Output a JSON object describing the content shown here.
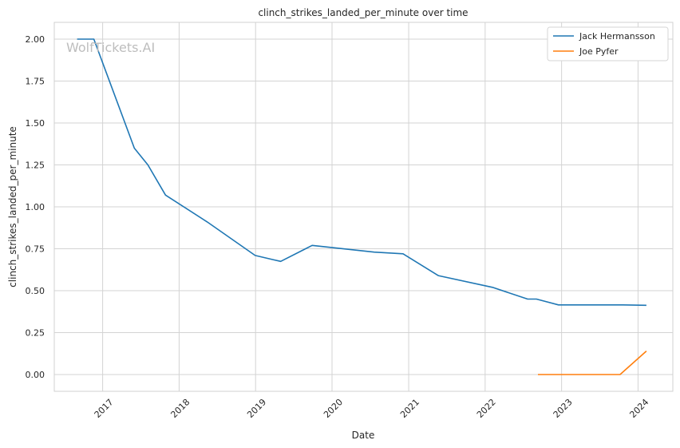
{
  "watermark": "WolfTickets.AI",
  "chart_data": {
    "type": "line",
    "title": "clinch_strikes_landed_per_minute over time",
    "xlabel": "Date",
    "ylabel": "clinch_strikes_landed_per_minute",
    "x_ticks": [
      "2017",
      "2018",
      "2019",
      "2020",
      "2021",
      "2022",
      "2023",
      "2024"
    ],
    "y_ticks": [
      "0.00",
      "0.25",
      "0.50",
      "0.75",
      "1.00",
      "1.25",
      "1.50",
      "1.75",
      "2.00"
    ],
    "xlim": [
      "2016-05-15",
      "2024-06-15"
    ],
    "ylim": [
      -0.1,
      2.1
    ],
    "grid": true,
    "legend_position": "top-right",
    "series": [
      {
        "name": "Jack Hermansson",
        "color": "#1f77b4",
        "points": [
          {
            "x": "2016-09-01",
            "y": 2.0
          },
          {
            "x": "2016-11-20",
            "y": 2.0
          },
          {
            "x": "2017-06-01",
            "y": 1.35
          },
          {
            "x": "2017-08-05",
            "y": 1.25
          },
          {
            "x": "2017-10-28",
            "y": 1.07
          },
          {
            "x": "2018-05-15",
            "y": 0.91
          },
          {
            "x": "2018-12-30",
            "y": 0.71
          },
          {
            "x": "2019-03-25",
            "y": 0.685
          },
          {
            "x": "2019-05-01",
            "y": 0.675
          },
          {
            "x": "2019-09-28",
            "y": 0.77
          },
          {
            "x": "2020-07-20",
            "y": 0.73
          },
          {
            "x": "2020-12-05",
            "y": 0.72
          },
          {
            "x": "2021-05-22",
            "y": 0.59
          },
          {
            "x": "2022-02-05",
            "y": 0.52
          },
          {
            "x": "2022-07-23",
            "y": 0.45
          },
          {
            "x": "2022-09-03",
            "y": 0.45
          },
          {
            "x": "2022-12-17",
            "y": 0.415
          },
          {
            "x": "2023-10-21",
            "y": 0.415
          },
          {
            "x": "2024-02-10",
            "y": 0.413
          }
        ]
      },
      {
        "name": "Joe Pyfer",
        "color": "#ff7f0e",
        "points": [
          {
            "x": "2022-09-10",
            "y": 0.0
          },
          {
            "x": "2023-10-07",
            "y": 0.0
          },
          {
            "x": "2024-02-10",
            "y": 0.14
          }
        ]
      }
    ]
  }
}
